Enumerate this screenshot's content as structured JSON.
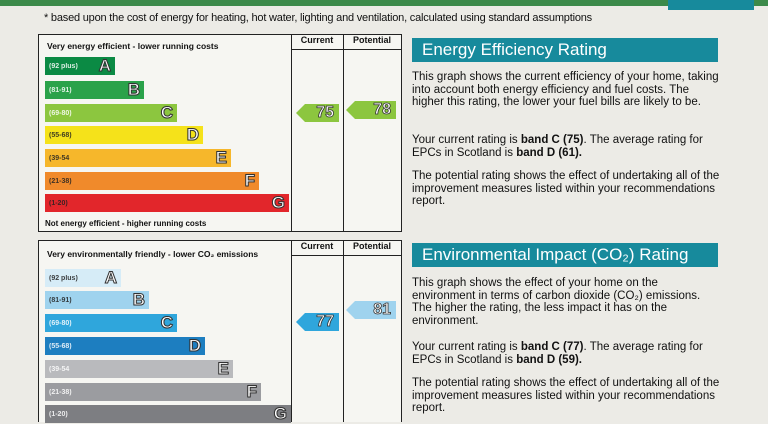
{
  "footnote": "* based upon the cost of energy for heating, hot water, lighting and ventilation, calculated using standard assumptions",
  "energy": {
    "top_label": "Very energy efficient - lower running costs",
    "bottom_label": "Not energy efficient - higher running costs",
    "current_header": "Current",
    "potential_header": "Potential",
    "current_value": "75",
    "potential_value": "78",
    "bands": [
      {
        "range": "(92 plus)",
        "letter": "A",
        "color": "#0b8a44"
      },
      {
        "range": "(81-91)",
        "letter": "B",
        "color": "#2aa24a"
      },
      {
        "range": "(69-80)",
        "letter": "C",
        "color": "#8cc63f"
      },
      {
        "range": "(55-68)",
        "letter": "D",
        "color": "#f5e21a"
      },
      {
        "range": "(39-54",
        "letter": "E",
        "color": "#f6b72b"
      },
      {
        "range": "(21-38)",
        "letter": "F",
        "color": "#f08a2b"
      },
      {
        "range": "(1-20)",
        "letter": "G",
        "color": "#e2262b"
      }
    ],
    "title": "Energy Efficiency Rating",
    "p1": "This graph shows the current efficiency of your home, taking into account both energy efficiency and fuel costs. The higher this rating, the lower your fuel bills are likely to be.",
    "p2_pre": "Your current rating is ",
    "p2_b1": "band C (75)",
    "p2_mid": ". The average rating for EPCs in Scotland is ",
    "p2_b2": "band D (61).",
    "p3": "The potential rating shows the effect of undertaking all of the improvement measures listed within your recommendations report."
  },
  "environment": {
    "top_label": "Very environmentally friendly - lower CO₂ emissions",
    "current_header": "Current",
    "potential_header": "Potential",
    "current_value": "77",
    "potential_value": "81",
    "bands": [
      {
        "range": "(92 plus)",
        "letter": "A",
        "color": "#d6ecf7"
      },
      {
        "range": "(81-91)",
        "letter": "B",
        "color": "#9fd3ee"
      },
      {
        "range": "(69-80)",
        "letter": "C",
        "color": "#2fa6dc"
      },
      {
        "range": "(55-68)",
        "letter": "D",
        "color": "#1d7ec0"
      },
      {
        "range": "(39-54",
        "letter": "E",
        "color": "#b9babd"
      },
      {
        "range": "(21-38)",
        "letter": "F",
        "color": "#9b9ca0"
      },
      {
        "range": "(1-20)",
        "letter": "G",
        "color": "#7d7e82"
      }
    ],
    "title": "Environmental Impact (CO₂) Rating",
    "p1": "This graph shows the effect of your home on the environment in terms of carbon dioxide (CO₂) emissions. The higher the rating, the less impact it has on the environment.",
    "p2_pre": "Your current rating is ",
    "p2_b1": "band C (77)",
    "p2_mid": ". The average rating for EPCs in Scotland is ",
    "p2_b2": "band D (59).",
    "p3": "The potential rating shows the effect of undertaking all of the improvement measures listed within your recommendations report."
  }
}
